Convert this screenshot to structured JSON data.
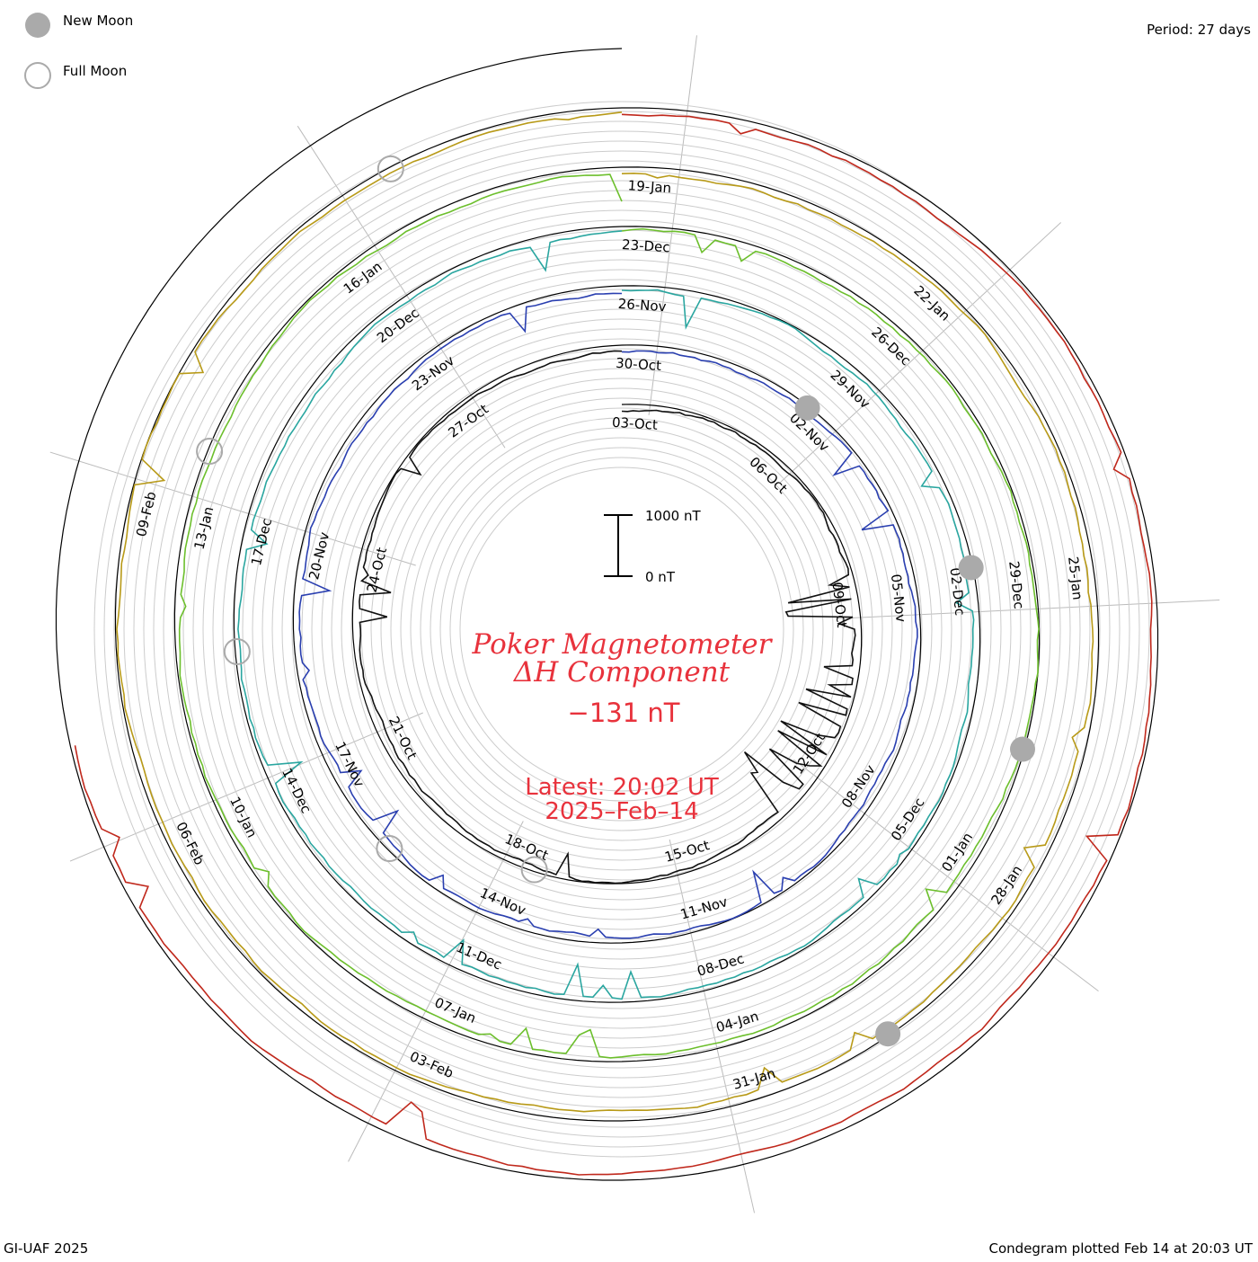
{
  "header": {
    "period_label": "Period: 27 days",
    "legend": [
      {
        "label": "New Moon",
        "style": "filled"
      },
      {
        "label": "Full Moon",
        "style": "outline"
      }
    ]
  },
  "footer": {
    "credit": "GI-UAF 2025",
    "plotted": "Condegram plotted Feb 14 at 20:03 UT"
  },
  "center": {
    "title_line1": "Poker Magnetometer",
    "title_line2": "ΔH Component",
    "current_value": "−131 nT",
    "latest_line1": "Latest: 20:02 UT",
    "latest_line2": "2025–Feb–14"
  },
  "scale_bar": {
    "top_label": "1000 nT",
    "bottom_label": "0 nT"
  },
  "colors": {
    "title": "#e8323c",
    "new_moon": "#aaaaaa",
    "full_moon": "#aaaaaa",
    "ring_grid": "#cccccc",
    "spoke_grid": "#bbbbbb"
  },
  "chart_data": {
    "type": "line",
    "title": "Poker Magnetometer ΔH Component",
    "period_days": 27,
    "unit": "nT",
    "scale_bar_nT": [
      0,
      1000
    ],
    "latest_value_nT": -131,
    "grid": true,
    "cycles": [
      {
        "color": "#111111",
        "date_labels": [
          "03-Oct",
          "06-Oct",
          "09-Oct",
          "12-Oct",
          "15-Oct",
          "18-Oct",
          "21-Oct",
          "24-Oct",
          "27-Oct"
        ]
      },
      {
        "color": "#2a3fb0",
        "date_labels": [
          "30-Oct",
          "02-Nov",
          "05-Nov",
          "08-Nov",
          "11-Nov",
          "14-Nov",
          "17-Nov",
          "20-Nov",
          "23-Nov"
        ]
      },
      {
        "color": "#2aa6a0",
        "date_labels": [
          "26-Nov",
          "29-Nov",
          "02-Dec",
          "05-Dec",
          "08-Dec",
          "11-Dec",
          "14-Dec",
          "17-Dec",
          "20-Dec"
        ]
      },
      {
        "color": "#6cbf2c",
        "date_labels": [
          "23-Dec",
          "26-Dec",
          "29-Dec",
          "01-Jan",
          "04-Jan",
          "07-Jan",
          "10-Jan",
          "13-Jan",
          "16-Jan"
        ]
      },
      {
        "color": "#b89a18",
        "date_labels": [
          "19-Jan",
          "22-Jan",
          "25-Jan",
          "28-Jan",
          "31-Jan",
          "03-Feb",
          "06-Feb",
          "09-Feb"
        ]
      },
      {
        "color": "#c0281c",
        "date_labels": []
      }
    ],
    "new_moons": [
      "2024-Nov-01",
      "2024-Dec-01",
      "2024-Dec-30",
      "2025-Jan-29"
    ],
    "full_moons": [
      "2024-Oct-17",
      "2024-Nov-15",
      "2024-Dec-15",
      "2025-Jan-13",
      "2025-Feb-12"
    ]
  }
}
